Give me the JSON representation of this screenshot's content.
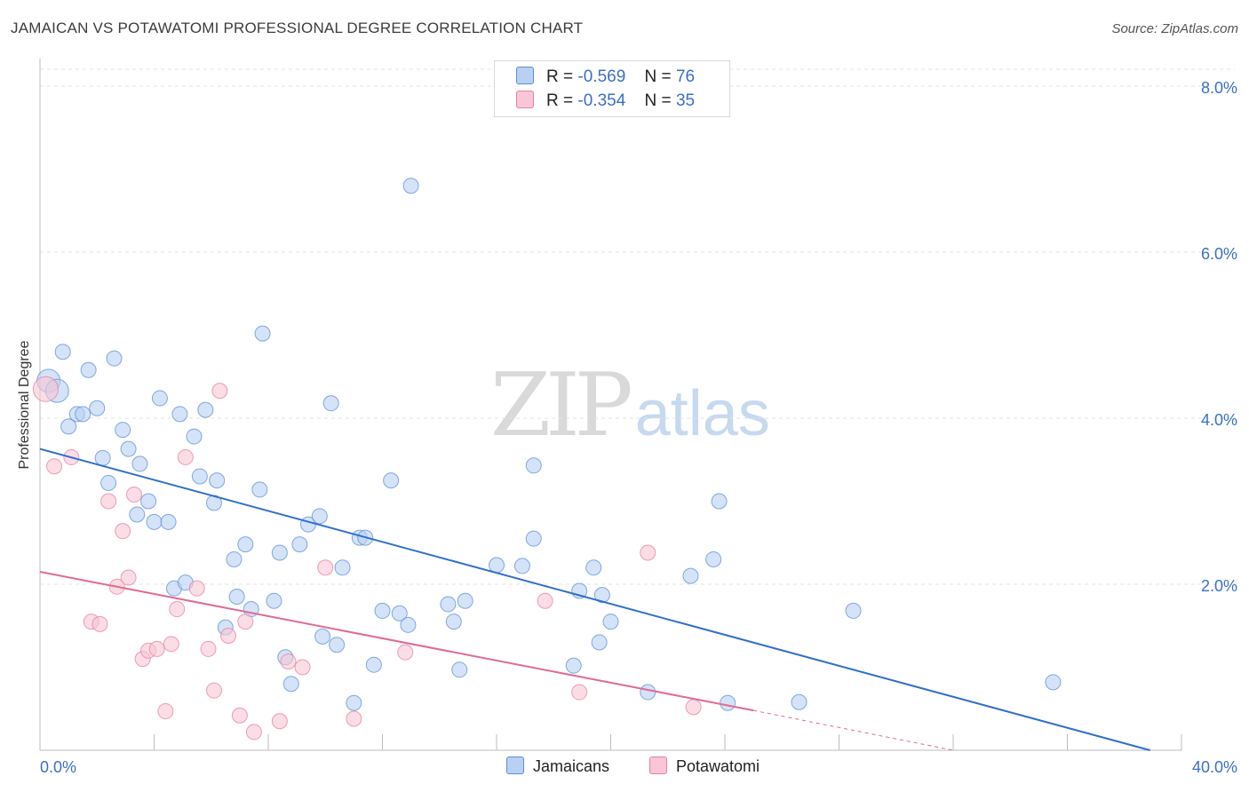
{
  "title": "JAMAICAN VS POTAWATOMI PROFESSIONAL DEGREE CORRELATION CHART",
  "source": "Source: ZipAtlas.com",
  "watermark": {
    "zip": "ZIP",
    "atlas": "atlas"
  },
  "legend": {
    "r_label": "R =",
    "n_label": "N =",
    "rows": [
      {
        "r": "-0.569",
        "n": "76"
      },
      {
        "r": "-0.354",
        "n": "35"
      }
    ]
  },
  "chart_data": {
    "type": "scatter",
    "title": "JAMAICAN VS POTAWATOMI PROFESSIONAL DEGREE CORRELATION CHART",
    "xlabel": "",
    "ylabel": "Professional Degree",
    "xlim": [
      0,
      40
    ],
    "ylim": [
      0,
      8
    ],
    "x_tick_labels": [
      "0.0%",
      "40.0%"
    ],
    "y_ticks": [
      2,
      4,
      6,
      8
    ],
    "y_tick_labels": [
      "2.0%",
      "4.0%",
      "6.0%",
      "8.0%"
    ],
    "grid": true,
    "colors": {
      "jamaicans": "#5b8fd6",
      "jamaicans_fill": "#b8d1f3",
      "potawatomi": "#e87fa0",
      "potawatomi_fill": "#f8c6d6",
      "tick_text": "#3a6fc4"
    },
    "series": [
      {
        "name": "Jamaicans",
        "trend": {
          "x": [
            0,
            38.9
          ],
          "y": [
            3.63,
            0.0
          ]
        },
        "points": [
          [
            0.3,
            4.45
          ],
          [
            0.6,
            4.33
          ],
          [
            0.8,
            4.8
          ],
          [
            1.0,
            3.9
          ],
          [
            1.3,
            4.05
          ],
          [
            1.5,
            4.05
          ],
          [
            1.7,
            4.58
          ],
          [
            2.0,
            4.12
          ],
          [
            2.2,
            3.52
          ],
          [
            2.4,
            3.22
          ],
          [
            2.6,
            4.72
          ],
          [
            2.9,
            3.86
          ],
          [
            3.1,
            3.63
          ],
          [
            3.4,
            2.84
          ],
          [
            3.5,
            3.45
          ],
          [
            3.8,
            3.0
          ],
          [
            4.0,
            2.75
          ],
          [
            4.2,
            4.24
          ],
          [
            4.5,
            2.75
          ],
          [
            4.7,
            1.95
          ],
          [
            4.9,
            4.05
          ],
          [
            5.1,
            2.02
          ],
          [
            5.4,
            3.78
          ],
          [
            5.6,
            3.3
          ],
          [
            5.8,
            4.1
          ],
          [
            6.1,
            2.98
          ],
          [
            6.2,
            3.25
          ],
          [
            6.5,
            1.48
          ],
          [
            6.8,
            2.3
          ],
          [
            6.9,
            1.85
          ],
          [
            7.2,
            2.48
          ],
          [
            7.4,
            1.7
          ],
          [
            7.7,
            3.14
          ],
          [
            7.8,
            5.02
          ],
          [
            8.2,
            1.8
          ],
          [
            8.4,
            2.38
          ],
          [
            8.6,
            1.12
          ],
          [
            8.8,
            0.8
          ],
          [
            9.1,
            2.48
          ],
          [
            9.4,
            2.72
          ],
          [
            9.8,
            2.82
          ],
          [
            9.9,
            1.37
          ],
          [
            10.2,
            4.18
          ],
          [
            10.4,
            1.27
          ],
          [
            10.6,
            2.2
          ],
          [
            11.0,
            0.57
          ],
          [
            11.2,
            2.56
          ],
          [
            11.4,
            2.56
          ],
          [
            11.7,
            1.03
          ],
          [
            12.0,
            1.68
          ],
          [
            12.3,
            3.25
          ],
          [
            12.6,
            1.65
          ],
          [
            12.9,
            1.51
          ],
          [
            13.0,
            6.8
          ],
          [
            14.3,
            1.76
          ],
          [
            14.5,
            1.55
          ],
          [
            14.7,
            0.97
          ],
          [
            14.9,
            1.8
          ],
          [
            16.0,
            2.23
          ],
          [
            16.9,
            2.22
          ],
          [
            17.3,
            3.43
          ],
          [
            17.3,
            2.55
          ],
          [
            18.7,
            1.02
          ],
          [
            18.9,
            1.92
          ],
          [
            19.4,
            2.2
          ],
          [
            19.6,
            1.3
          ],
          [
            19.7,
            1.87
          ],
          [
            20.0,
            1.55
          ],
          [
            21.3,
            0.7
          ],
          [
            22.8,
            2.1
          ],
          [
            23.6,
            2.3
          ],
          [
            23.8,
            3.0
          ],
          [
            24.1,
            0.57
          ],
          [
            26.6,
            0.58
          ],
          [
            28.5,
            1.68
          ],
          [
            35.5,
            0.82
          ]
        ]
      },
      {
        "name": "Potawatomi",
        "trend": {
          "x": [
            0,
            25.0
          ],
          "y": [
            2.15,
            0.48
          ]
        },
        "trend_dashed": {
          "x": [
            25.0,
            32.0
          ],
          "y": [
            0.48,
            0.0
          ]
        },
        "points": [
          [
            0.2,
            4.35
          ],
          [
            0.5,
            3.42
          ],
          [
            1.1,
            3.53
          ],
          [
            1.8,
            1.55
          ],
          [
            2.1,
            1.52
          ],
          [
            2.4,
            3.0
          ],
          [
            2.7,
            1.97
          ],
          [
            2.9,
            2.64
          ],
          [
            3.1,
            2.08
          ],
          [
            3.3,
            3.08
          ],
          [
            3.6,
            1.1
          ],
          [
            3.8,
            1.2
          ],
          [
            4.1,
            1.22
          ],
          [
            4.4,
            0.47
          ],
          [
            4.6,
            1.28
          ],
          [
            4.8,
            1.7
          ],
          [
            5.1,
            3.53
          ],
          [
            5.5,
            1.95
          ],
          [
            5.9,
            1.22
          ],
          [
            6.1,
            0.72
          ],
          [
            6.3,
            4.33
          ],
          [
            6.6,
            1.38
          ],
          [
            7.0,
            0.42
          ],
          [
            7.2,
            1.55
          ],
          [
            7.5,
            0.22
          ],
          [
            8.4,
            0.35
          ],
          [
            8.7,
            1.07
          ],
          [
            9.2,
            1.0
          ],
          [
            10.0,
            2.2
          ],
          [
            11.0,
            0.38
          ],
          [
            12.8,
            1.18
          ],
          [
            17.7,
            1.8
          ],
          [
            18.9,
            0.7
          ],
          [
            21.3,
            2.38
          ],
          [
            22.9,
            0.52
          ]
        ]
      }
    ]
  },
  "bottom_legend": [
    "Jamaicans",
    "Potawatomi"
  ]
}
